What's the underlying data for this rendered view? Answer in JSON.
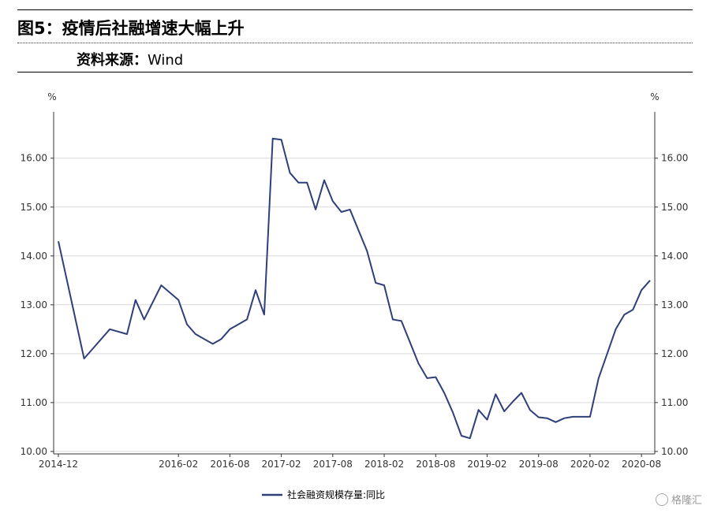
{
  "header": {
    "figure_number": "图5：",
    "title": "疫情后社融增速大幅上升",
    "source_label": "资料来源：",
    "source_value": "Wind"
  },
  "watermark": {
    "text": "格隆汇"
  },
  "colors": {
    "line": "#2f3f7a",
    "grid": "#d9d9d9",
    "axis": "#333333"
  },
  "chart_data": {
    "type": "line",
    "title": "",
    "xlabel": "",
    "ylabel_left": "%",
    "ylabel_right": "%",
    "ylim": [
      9.95,
      16.85
    ],
    "yticks": [
      "10.00",
      "11.00",
      "12.00",
      "13.00",
      "14.00",
      "15.00",
      "16.00"
    ],
    "ytick_values": [
      10,
      11,
      12,
      13,
      14,
      15,
      16
    ],
    "xticks": [
      "2014-12",
      "2016-02",
      "2016-08",
      "2017-02",
      "2017-08",
      "2018-02",
      "2018-08",
      "2019-02",
      "2019-08",
      "2020-02",
      "2020-08"
    ],
    "xtick_positions": [
      "2014-12",
      "2016-02",
      "2016-08",
      "2017-02",
      "2017-08",
      "2018-02",
      "2018-08",
      "2019-02",
      "2019-08",
      "2020-02",
      "2020-08"
    ],
    "grid": true,
    "legend_position": "bottom",
    "series": [
      {
        "name": "社会融资规模存量:同比",
        "x": [
          "2014-12",
          "2015-03",
          "2015-06",
          "2015-08",
          "2015-09",
          "2015-10",
          "2015-12",
          "2016-02",
          "2016-03",
          "2016-04",
          "2016-06",
          "2016-07",
          "2016-08",
          "2016-10",
          "2016-11",
          "2016-12",
          "2017-01",
          "2017-02",
          "2017-03",
          "2017-04",
          "2017-05",
          "2017-06",
          "2017-07",
          "2017-08",
          "2017-09",
          "2017-10",
          "2017-12",
          "2018-01",
          "2018-02",
          "2018-03",
          "2018-04",
          "2018-06",
          "2018-07",
          "2018-08",
          "2018-09",
          "2018-10",
          "2018-11",
          "2018-12",
          "2019-01",
          "2019-02",
          "2019-03",
          "2019-04",
          "2019-05",
          "2019-06",
          "2019-07",
          "2019-08",
          "2019-09",
          "2019-10",
          "2019-11",
          "2019-12",
          "2020-01",
          "2020-02",
          "2020-03",
          "2020-04",
          "2020-05",
          "2020-06",
          "2020-07",
          "2020-08",
          "2020-09"
        ],
        "values": [
          14.3,
          11.9,
          12.5,
          12.4,
          13.1,
          12.7,
          13.4,
          13.1,
          12.6,
          12.4,
          12.2,
          12.3,
          12.5,
          12.7,
          13.3,
          12.8,
          16.4,
          16.38,
          15.7,
          15.5,
          15.5,
          14.95,
          15.55,
          15.12,
          14.9,
          14.95,
          14.1,
          13.45,
          13.4,
          12.7,
          12.67,
          11.8,
          11.5,
          11.52,
          11.2,
          10.8,
          10.32,
          10.27,
          10.85,
          10.65,
          11.17,
          10.82,
          11.02,
          11.2,
          10.85,
          10.7,
          10.68,
          10.6,
          10.68,
          10.71,
          10.71,
          10.71,
          11.5,
          12.0,
          12.5,
          12.8,
          12.9,
          13.3,
          13.5
        ]
      }
    ]
  }
}
